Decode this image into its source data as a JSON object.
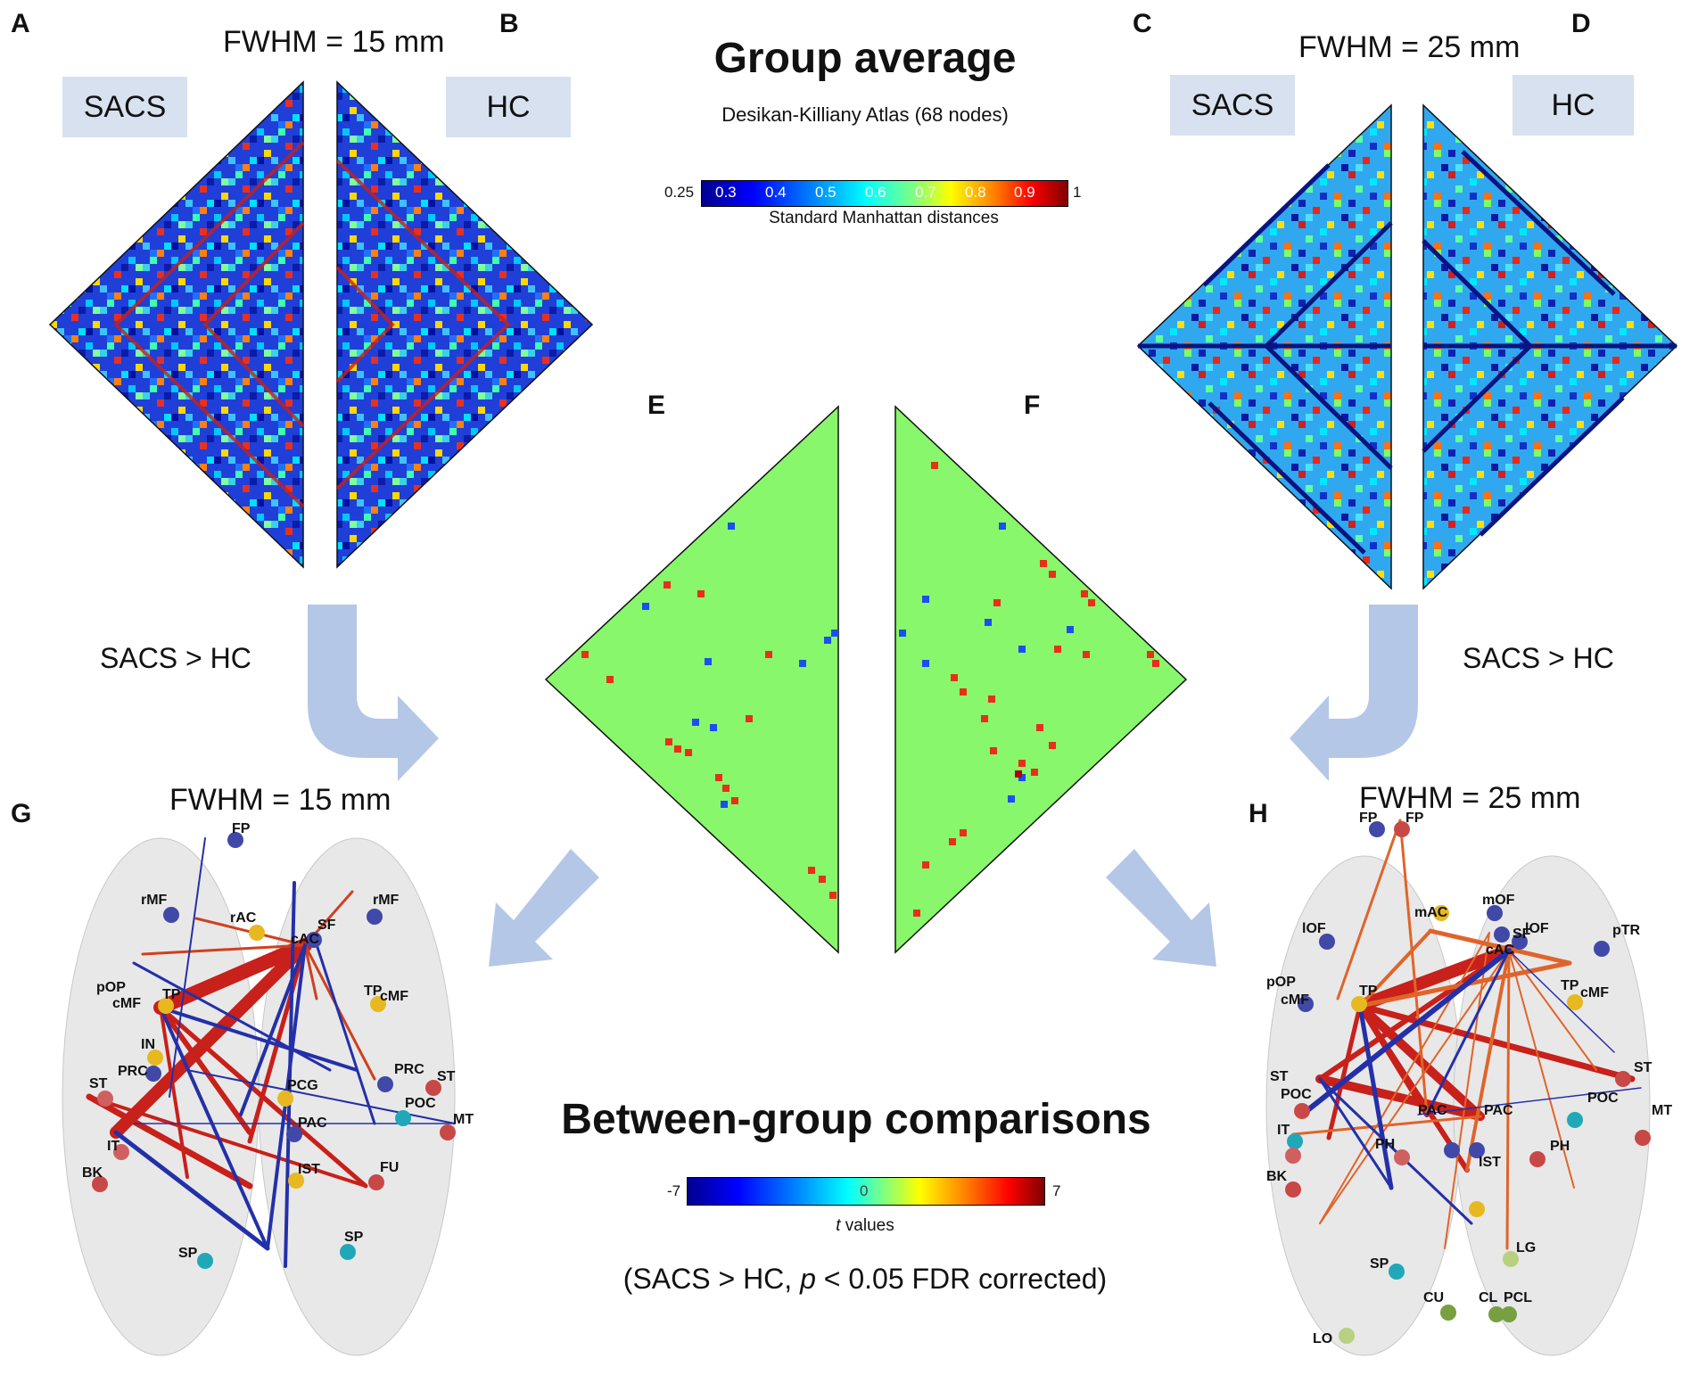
{
  "panels": {
    "A": "A",
    "B": "B",
    "C": "C",
    "D": "D",
    "E": "E",
    "F": "F",
    "G": "G",
    "H": "H"
  },
  "fwhm_15": "FWHM = 15 mm",
  "fwhm_25": "FWHM = 25 mm",
  "group_sacs": "SACS",
  "group_hc": "HC",
  "group_average_title": "Group average",
  "atlas_subtitle": "Desikan-Killiany Atlas (68 nodes)",
  "colorbar_top": {
    "ticks": [
      "0.25",
      "0.3",
      "0.4",
      "0.5",
      "0.6",
      "0.7",
      "0.8",
      "0.9",
      "1"
    ],
    "label": "Standard Manhattan distances"
  },
  "comparison_label": "SACS > HC",
  "between_title": "Between-group comparisons",
  "colorbar_bottom": {
    "ticks": [
      "-7",
      "0",
      "7"
    ],
    "label_italic": "t",
    "label_rest": " values"
  },
  "note": {
    "prefix": "(SACS > HC, ",
    "p": "p",
    "suffix": " < 0.05 FDR corrected)"
  },
  "colors": {
    "arrow": "#b4c7e7",
    "box": "#d7e1f0",
    "green_matrix": "#88f76b",
    "edge_red": "#c8201a",
    "edge_blue": "#2430a8",
    "edge_orange": "#e0642a"
  },
  "brain_G_nodes": [
    "FP",
    "rMF",
    "rAC",
    "rMF",
    "SF",
    "cAC",
    "pOP",
    "cMF",
    "TP",
    "TP",
    "cMF",
    "IN",
    "PRC",
    "PCG",
    "PRC",
    "ST",
    "ST",
    "POC",
    "MT",
    "PAC",
    "IT",
    "BK",
    "IST",
    "FU",
    "SP",
    "SP"
  ],
  "brain_H_nodes": [
    "FP",
    "FP",
    "mOF",
    "mAC",
    "lOF",
    "lOF",
    "pTR",
    "pOP",
    "cMF",
    "TP",
    "SF",
    "cAC",
    "TP",
    "cMF",
    "ST",
    "ST",
    "POC",
    "POC",
    "MT",
    "IT",
    "PH",
    "PAC",
    "PAC",
    "PH",
    "BK",
    "IST",
    "SP",
    "LG",
    "CU",
    "CL",
    "PCL",
    "LO"
  ]
}
